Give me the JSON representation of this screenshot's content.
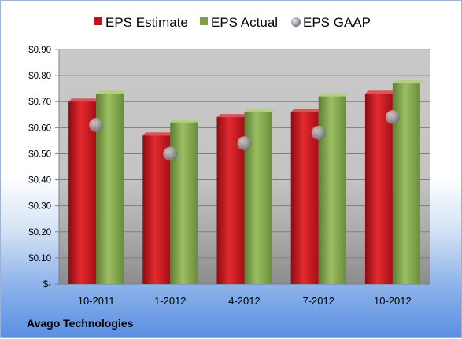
{
  "chart_data": {
    "type": "bar",
    "categories": [
      "10-2011",
      "1-2012",
      "4-2012",
      "7-2012",
      "10-2012"
    ],
    "series": [
      {
        "name": "EPS Estimate",
        "kind": "bar",
        "color": "#c0121a",
        "values": [
          0.7,
          0.57,
          0.64,
          0.66,
          0.73
        ]
      },
      {
        "name": "EPS Actual",
        "kind": "bar",
        "color": "#7ea04a",
        "values": [
          0.73,
          0.62,
          0.66,
          0.72,
          0.77
        ]
      },
      {
        "name": "EPS GAAP",
        "kind": "scatter",
        "color": "#b0b4bc",
        "values": [
          0.61,
          0.5,
          0.54,
          0.58,
          0.64
        ]
      }
    ],
    "ylim": [
      0,
      0.9
    ],
    "yticks": [
      0,
      0.1,
      0.2,
      0.3,
      0.4,
      0.5,
      0.6,
      0.7,
      0.8,
      0.9
    ],
    "ytick_labels": [
      "$-",
      "$0.10",
      "$0.20",
      "$0.30",
      "$0.40",
      "$0.50",
      "$0.60",
      "$0.70",
      "$0.80",
      "$0.90"
    ],
    "legend_position": "top",
    "grid": true
  },
  "footer": {
    "company": "Avago Technologies"
  }
}
